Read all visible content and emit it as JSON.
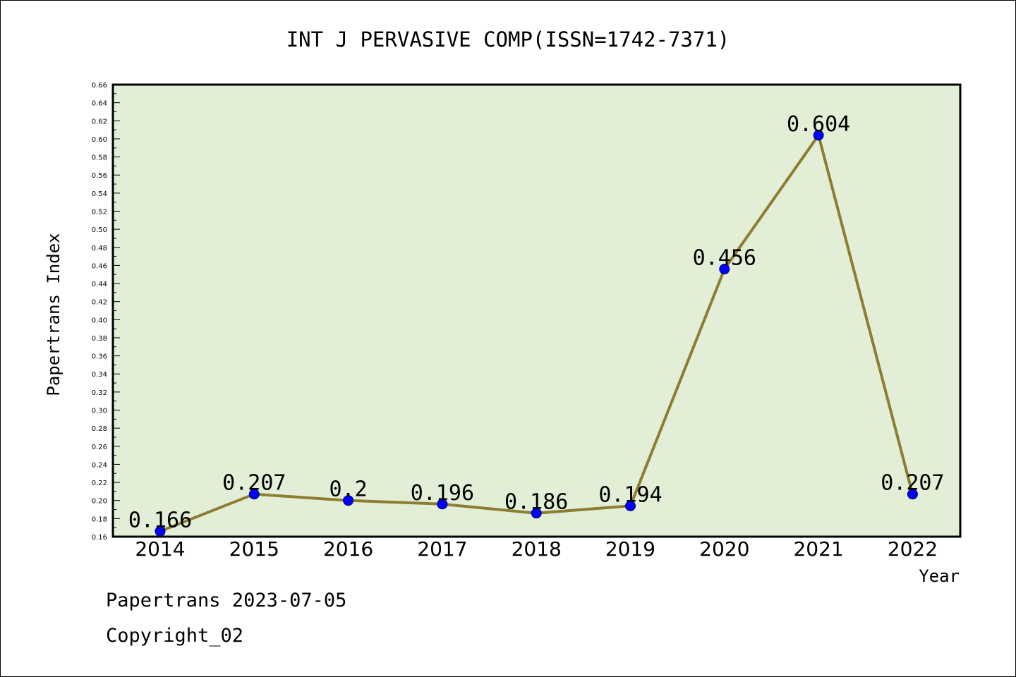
{
  "chart_data": {
    "type": "line",
    "title": "INT J PERVASIVE COMP(ISSN=1742-7371)",
    "xlabel": "Year",
    "ylabel": "Papertrans Index",
    "categories": [
      "2014",
      "2015",
      "2016",
      "2017",
      "2018",
      "2019",
      "2020",
      "2021",
      "2022"
    ],
    "series": [
      {
        "values": [
          0.166,
          0.207,
          0.2,
          0.196,
          0.186,
          0.194,
          0.456,
          0.604,
          0.207
        ],
        "labels": [
          "0.166",
          "0.207",
          "0.2",
          "0.196",
          "0.186",
          "0.194",
          "0.456",
          "0.604",
          "0.207"
        ]
      }
    ],
    "ylim": [
      0.16,
      0.66
    ],
    "yticks": [
      "0.16",
      "0.18",
      "0.20",
      "0.22",
      "0.24",
      "0.26",
      "0.28",
      "0.30",
      "0.32",
      "0.34",
      "0.36",
      "0.38",
      "0.40",
      "0.42",
      "0.44",
      "0.46",
      "0.48",
      "0.50",
      "0.52",
      "0.54",
      "0.56",
      "0.58",
      "0.60",
      "0.62",
      "0.64",
      "0.66"
    ],
    "grid": false,
    "colors": {
      "plot_background": "#e2efd6",
      "line": "#8c7d32",
      "marker": "#0000ff"
    }
  },
  "footer": {
    "line1": "Papertrans 2023-07-05",
    "line2": "Copyright_02"
  }
}
